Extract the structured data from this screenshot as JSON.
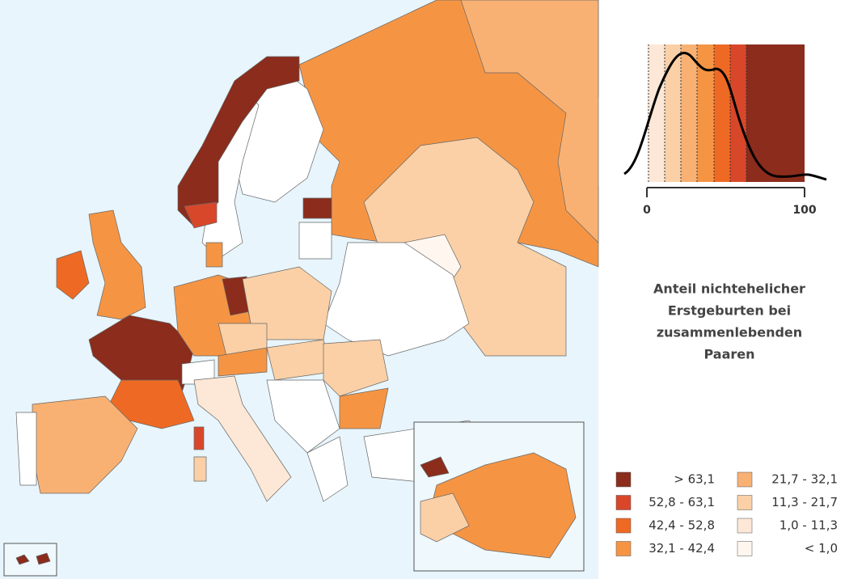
{
  "legend": {
    "title_lines": [
      "Anteil nichtehelicher",
      "Erstgeburten bei",
      "zusammenlebenden",
      "Paaren"
    ],
    "classes": [
      {
        "label": "> 63,1",
        "color": "#8b2c1c"
      },
      {
        "label": "52,8 - 63,1",
        "color": "#d9472a"
      },
      {
        "label": "42,4 - 52,8",
        "color": "#ee6a24"
      },
      {
        "label": "32,1 - 42,4",
        "color": "#f59544"
      },
      {
        "label": "21,7 - 32,1",
        "color": "#f8b173"
      },
      {
        "label": "11,3 - 21,7",
        "color": "#fbd0a6"
      },
      {
        "label": "1,0 - 11,3",
        "color": "#fde7d6"
      },
      {
        "label": "< 1,0",
        "color": "#fff6ef"
      }
    ]
  },
  "density": {
    "xlim": [
      0,
      100
    ],
    "xticks": [
      0,
      100
    ]
  }
}
